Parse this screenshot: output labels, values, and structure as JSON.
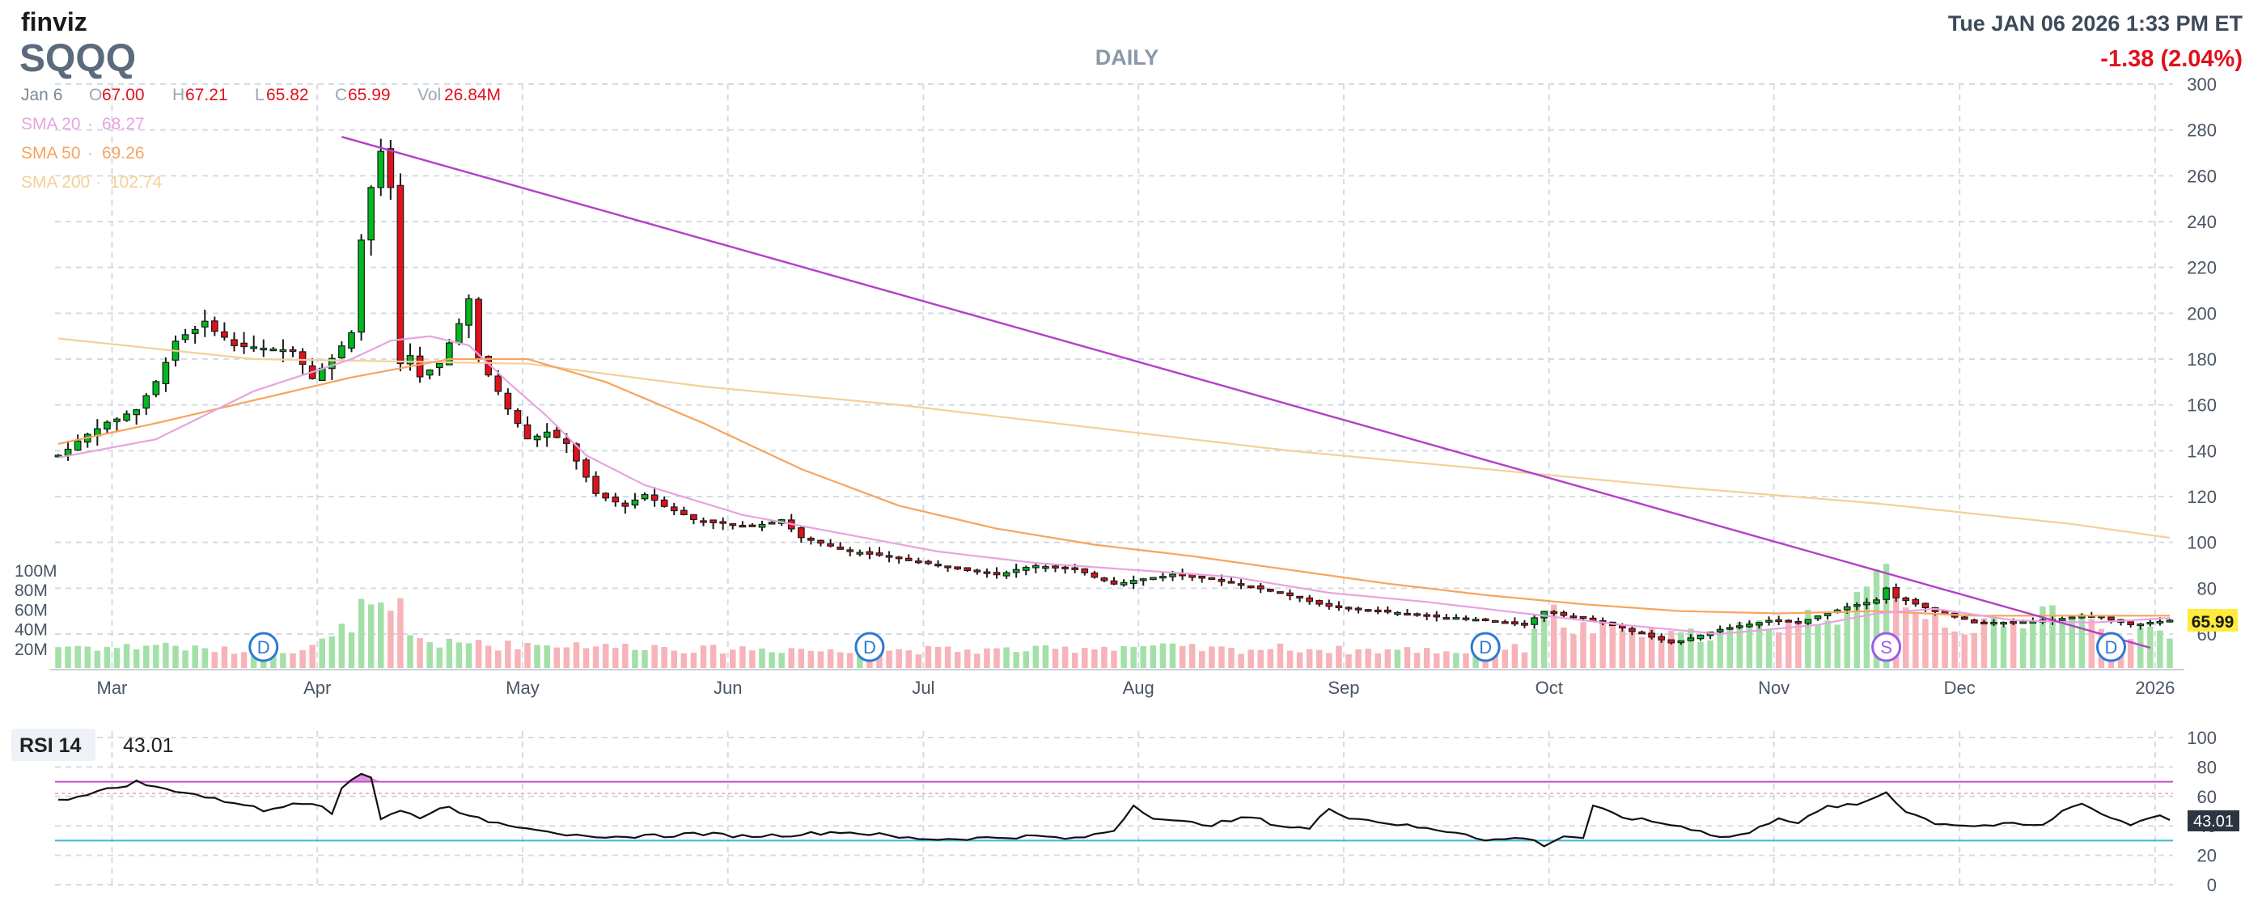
{
  "header": {
    "logo": "finviz",
    "ticker": "SQQQ",
    "period": "DAILY",
    "datetime": "Tue JAN 06 2026 1:33 PM ET",
    "change": "-1.38 (2.04%)"
  },
  "ohlc": {
    "date": "Jan 6",
    "o_label": "O",
    "o": "67.00",
    "h_label": "H",
    "h": "67.21",
    "l_label": "L",
    "l": "65.82",
    "c_label": "C",
    "c": "65.99",
    "vol_label": "Vol",
    "vol": "26.84M"
  },
  "sma": [
    {
      "label": "SMA 20",
      "value": "68.27",
      "color": "#e7a3e0"
    },
    {
      "label": "SMA 50",
      "value": "69.26",
      "color": "#f7a45d"
    },
    {
      "label": "SMA 200",
      "value": "102.74",
      "color": "#f5cf98"
    }
  ],
  "rsi": {
    "label": "RSI 14",
    "value": "43.01"
  },
  "last_price_tag": "65.99",
  "colors": {
    "up": "#00b81f",
    "down": "#e1111c",
    "trendline": "#b53ec9",
    "vol_up": "#a3e0a8",
    "vol_down": "#f6b3b8",
    "dividend": "#2b79d4",
    "split": "#9a5ce8",
    "rsi_band": "#c94cd0",
    "rsi_low": "#3fb8d8",
    "price_tag": "#ffeb3b"
  },
  "chart_data": {
    "type": "candlestick",
    "price_axis": {
      "ticks": [
        60,
        80,
        100,
        120,
        140,
        160,
        180,
        200,
        220,
        240,
        260,
        280,
        300
      ],
      "range": [
        45,
        300
      ]
    },
    "volume_axis": {
      "ticks": [
        "20M",
        "40M",
        "60M",
        "80M",
        "100M"
      ]
    },
    "rsi_axis": {
      "ticks": [
        0,
        20,
        40,
        60,
        80,
        100
      ],
      "overbought": 70,
      "oversold": 30
    },
    "month_labels": [
      "Mar",
      "Apr",
      "May",
      "Jun",
      "Jul",
      "Aug",
      "Sep",
      "Oct",
      "Nov",
      "Dec",
      "2026"
    ],
    "month_start_index": [
      6,
      27,
      48,
      69,
      89,
      111,
      132,
      153,
      176,
      195,
      215
    ],
    "trendline": {
      "from": {
        "i": 29,
        "price": 277
      },
      "to": {
        "i": 214,
        "price": 54
      }
    },
    "events": [
      {
        "type": "D",
        "i": 21
      },
      {
        "type": "D",
        "i": 83
      },
      {
        "type": "D",
        "i": 146
      },
      {
        "type": "S",
        "i": 187
      },
      {
        "type": "D",
        "i": 210
      }
    ],
    "anchors": [
      [
        0,
        138
      ],
      [
        4,
        150
      ],
      [
        8,
        158
      ],
      [
        10,
        170
      ],
      [
        12,
        188
      ],
      [
        15,
        196
      ],
      [
        18,
        186
      ],
      [
        22,
        184
      ],
      [
        24,
        184
      ],
      [
        26,
        172
      ],
      [
        28,
        180
      ],
      [
        30,
        192
      ],
      [
        31,
        232
      ],
      [
        32,
        255
      ],
      [
        33,
        270
      ],
      [
        34,
        255
      ],
      [
        35,
        178
      ],
      [
        36,
        182
      ],
      [
        37,
        172
      ],
      [
        39,
        178
      ],
      [
        41,
        196
      ],
      [
        42,
        206
      ],
      [
        43,
        180
      ],
      [
        45,
        166
      ],
      [
        46,
        158
      ],
      [
        47,
        152
      ],
      [
        48,
        145
      ],
      [
        50,
        148
      ],
      [
        52,
        143
      ],
      [
        55,
        121
      ],
      [
        58,
        116
      ],
      [
        60,
        121
      ],
      [
        62,
        116
      ],
      [
        65,
        110
      ],
      [
        70,
        107
      ],
      [
        72,
        108
      ],
      [
        74,
        110
      ],
      [
        76,
        102
      ],
      [
        80,
        97
      ],
      [
        90,
        90
      ],
      [
        96,
        86
      ],
      [
        100,
        90
      ],
      [
        104,
        88
      ],
      [
        108,
        82
      ],
      [
        114,
        86
      ],
      [
        118,
        84
      ],
      [
        125,
        78
      ],
      [
        130,
        72
      ],
      [
        140,
        68
      ],
      [
        146,
        66
      ],
      [
        150,
        64
      ],
      [
        152,
        70
      ],
      [
        158,
        65
      ],
      [
        162,
        60
      ],
      [
        165,
        56
      ],
      [
        170,
        62
      ],
      [
        175,
        66
      ],
      [
        178,
        65
      ],
      [
        183,
        72
      ],
      [
        186,
        75
      ],
      [
        187,
        80
      ],
      [
        188,
        76
      ],
      [
        192,
        70
      ],
      [
        196,
        65
      ],
      [
        200,
        65
      ],
      [
        203,
        66
      ],
      [
        208,
        68
      ],
      [
        212,
        64
      ],
      [
        216,
        66
      ]
    ],
    "sma20_anchors": [
      [
        0,
        137
      ],
      [
        10,
        145
      ],
      [
        20,
        166
      ],
      [
        30,
        180
      ],
      [
        34,
        188
      ],
      [
        38,
        190
      ],
      [
        42,
        186
      ],
      [
        46,
        170
      ],
      [
        50,
        155
      ],
      [
        54,
        138
      ],
      [
        60,
        125
      ],
      [
        70,
        112
      ],
      [
        80,
        104
      ],
      [
        90,
        96
      ],
      [
        100,
        91
      ],
      [
        110,
        88
      ],
      [
        120,
        85
      ],
      [
        130,
        78
      ],
      [
        140,
        74
      ],
      [
        150,
        69
      ],
      [
        160,
        64
      ],
      [
        170,
        60
      ],
      [
        180,
        64
      ],
      [
        186,
        69
      ],
      [
        192,
        71
      ],
      [
        200,
        66
      ],
      [
        208,
        65
      ],
      [
        216,
        67
      ]
    ],
    "sma50_anchors": [
      [
        0,
        143
      ],
      [
        10,
        152
      ],
      [
        20,
        162
      ],
      [
        30,
        172
      ],
      [
        40,
        180
      ],
      [
        48,
        180
      ],
      [
        56,
        170
      ],
      [
        66,
        152
      ],
      [
        76,
        132
      ],
      [
        86,
        116
      ],
      [
        96,
        106
      ],
      [
        106,
        99
      ],
      [
        116,
        94
      ],
      [
        126,
        88
      ],
      [
        136,
        82
      ],
      [
        146,
        77
      ],
      [
        156,
        73
      ],
      [
        166,
        70
      ],
      [
        176,
        69
      ],
      [
        186,
        70
      ],
      [
        196,
        68
      ],
      [
        206,
        68
      ],
      [
        216,
        68
      ]
    ],
    "sma200_anchors": [
      [
        0,
        189
      ],
      [
        20,
        180
      ],
      [
        48,
        178
      ],
      [
        66,
        168
      ],
      [
        86,
        160
      ],
      [
        106,
        150
      ],
      [
        126,
        140
      ],
      [
        146,
        132
      ],
      [
        166,
        124
      ],
      [
        186,
        117
      ],
      [
        206,
        108
      ],
      [
        216,
        102
      ]
    ],
    "rsi_anchors": [
      [
        0,
        57
      ],
      [
        3,
        62
      ],
      [
        6,
        66
      ],
      [
        8,
        70
      ],
      [
        10,
        66
      ],
      [
        13,
        63
      ],
      [
        16,
        58
      ],
      [
        19,
        55
      ],
      [
        21,
        50
      ],
      [
        24,
        56
      ],
      [
        26,
        56
      ],
      [
        28,
        48
      ],
      [
        29,
        66
      ],
      [
        30,
        72
      ],
      [
        31,
        76
      ],
      [
        32,
        73
      ],
      [
        33,
        45
      ],
      [
        35,
        50
      ],
      [
        37,
        46
      ],
      [
        40,
        54
      ],
      [
        42,
        46
      ],
      [
        45,
        42
      ],
      [
        47,
        40
      ],
      [
        50,
        37
      ],
      [
        52,
        34
      ],
      [
        55,
        31
      ],
      [
        58,
        32
      ],
      [
        60,
        34
      ],
      [
        62,
        33
      ],
      [
        65,
        35
      ],
      [
        70,
        33
      ],
      [
        75,
        34
      ],
      [
        80,
        36
      ],
      [
        84,
        34
      ],
      [
        86,
        32
      ],
      [
        90,
        31
      ],
      [
        96,
        32
      ],
      [
        100,
        33
      ],
      [
        104,
        31
      ],
      [
        108,
        37
      ],
      [
        110,
        54
      ],
      [
        112,
        46
      ],
      [
        114,
        43
      ],
      [
        118,
        41
      ],
      [
        122,
        46
      ],
      [
        125,
        40
      ],
      [
        128,
        38
      ],
      [
        130,
        52
      ],
      [
        132,
        46
      ],
      [
        136,
        42
      ],
      [
        140,
        38
      ],
      [
        144,
        35
      ],
      [
        146,
        30
      ],
      [
        150,
        32
      ],
      [
        152,
        27
      ],
      [
        154,
        33
      ],
      [
        156,
        32
      ],
      [
        157,
        53
      ],
      [
        160,
        46
      ],
      [
        164,
        42
      ],
      [
        168,
        37
      ],
      [
        170,
        32
      ],
      [
        173,
        35
      ],
      [
        176,
        46
      ],
      [
        178,
        42
      ],
      [
        181,
        53
      ],
      [
        184,
        54
      ],
      [
        186,
        60
      ],
      [
        187,
        63
      ],
      [
        189,
        50
      ],
      [
        192,
        42
      ],
      [
        196,
        40
      ],
      [
        200,
        41
      ],
      [
        203,
        40
      ],
      [
        205,
        50
      ],
      [
        207,
        56
      ],
      [
        209,
        48
      ],
      [
        212,
        41
      ],
      [
        214,
        46
      ],
      [
        215,
        48
      ],
      [
        216,
        43
      ]
    ],
    "volume_anchors": [
      [
        0,
        22
      ],
      [
        5,
        20
      ],
      [
        10,
        22
      ],
      [
        15,
        18
      ],
      [
        20,
        16
      ],
      [
        25,
        20
      ],
      [
        28,
        28
      ],
      [
        30,
        45
      ],
      [
        32,
        55
      ],
      [
        34,
        48
      ],
      [
        36,
        30
      ],
      [
        40,
        22
      ],
      [
        45,
        20
      ],
      [
        50,
        24
      ],
      [
        55,
        20
      ],
      [
        60,
        22
      ],
      [
        65,
        18
      ],
      [
        70,
        20
      ],
      [
        75,
        18
      ],
      [
        80,
        16
      ],
      [
        85,
        18
      ],
      [
        90,
        18
      ],
      [
        95,
        18
      ],
      [
        100,
        18
      ],
      [
        105,
        20
      ],
      [
        110,
        22
      ],
      [
        115,
        20
      ],
      [
        120,
        18
      ],
      [
        125,
        20
      ],
      [
        130,
        18
      ],
      [
        135,
        18
      ],
      [
        140,
        18
      ],
      [
        145,
        16
      ],
      [
        150,
        20
      ],
      [
        152,
        60
      ],
      [
        155,
        40
      ],
      [
        160,
        38
      ],
      [
        165,
        30
      ],
      [
        170,
        36
      ],
      [
        175,
        44
      ],
      [
        180,
        52
      ],
      [
        184,
        62
      ],
      [
        187,
        95
      ],
      [
        190,
        60
      ],
      [
        195,
        40
      ],
      [
        200,
        44
      ],
      [
        203,
        62
      ],
      [
        207,
        50
      ],
      [
        210,
        30
      ],
      [
        213,
        38
      ],
      [
        216,
        27
      ]
    ]
  }
}
